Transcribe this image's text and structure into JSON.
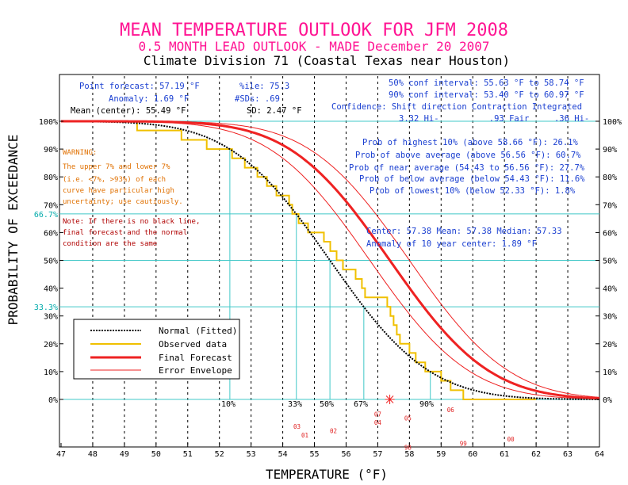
{
  "header": {
    "title": "MEAN TEMPERATURE OUTLOOK FOR JFM 2008",
    "subtitle": "0.5 MONTH LEAD OUTLOOK - MADE December 20 2007",
    "division": "Climate Division 71 (Coastal Texas near Houston)"
  },
  "stats_left": {
    "point_forecast": "Point forecast: 57.19 °F",
    "anomaly": "Anomaly:  1.69 °F",
    "mean_center": "Mean (center): 55.49 °F",
    "pctile": "%ile:  75.3",
    "nsds": "#SDs:  .69",
    "sd": "SD:  2.47 °F"
  },
  "stats_right": {
    "conf50": "50% conf interval: 55.63 °F to 58.74 °F",
    "conf90": "90% conf interval: 53.40 °F to 60.97 °F",
    "confidence_header": "Confidence: Shift direction  Contraction  Integrated",
    "confidence_values": "3.32 Hi-          .93 Fair     .36 Hi-"
  },
  "probabilities": {
    "highest10": "Prob of highest 10% (above 58.66 °F): 26.1%",
    "above": "Prob of above average (above 56.56 °F): 60.7%",
    "near": "Prob of near average (54.43 to 56.56 °F): 27.7%",
    "below": "Prob of below average (below 54.43 °F): 11.6%",
    "lowest10": "Prob of lowest 10% (below 52.33 °F): 1.8%"
  },
  "center_stats": {
    "line1": "Center: 57.38 Mean: 57.38 Median: 57.33",
    "line2": "Anomaly of 10 year center:  1.89 °F"
  },
  "warning": {
    "lines": [
      "WARNING:",
      "The upper 7% and lower 7%",
      "(i.e. <7%, >93%) of each",
      "curve have particular high",
      "uncertainty; use cautiously."
    ]
  },
  "note": {
    "lines": [
      "Note: If there is no black line,",
      "final forecast and  the normal",
      "condition are the same"
    ]
  },
  "legend": {
    "normal": "Normal (Fitted)",
    "observed": "Observed data",
    "final": "Final Forecast",
    "envelope": "Error Envelope"
  },
  "percentile_labels": [
    "10%",
    "33%",
    "50%",
    "67%",
    "90%"
  ],
  "colors": {
    "title": "#ff1493",
    "grid": "#40c8c8",
    "blue_text": "#1a3fd1",
    "forecast": "#ee2222",
    "observed": "#f0c000",
    "normal": "#000000",
    "warning": "#e07000",
    "note": "#b00000"
  },
  "chart_data": {
    "type": "line",
    "xlabel": "TEMPERATURE (°F)",
    "ylabel": "PROBABILITY OF EXCEEDANCE",
    "xlim": [
      47,
      64
    ],
    "ylim": [
      0,
      100
    ],
    "x_ticks": [
      47,
      48,
      49,
      50,
      51,
      52,
      53,
      54,
      55,
      56,
      57,
      58,
      59,
      60,
      61,
      62,
      63,
      64
    ],
    "y_ticks": [
      "0%",
      "10%",
      "20%",
      "30%",
      "40%",
      "50%",
      "60%",
      "70%",
      "80%",
      "90%",
      "100%"
    ],
    "y_tick_values": [
      0,
      10,
      20,
      30,
      40,
      50,
      60,
      70,
      80,
      90,
      100
    ],
    "special_y": [
      {
        "value": 66.7,
        "label": "66.7%"
      },
      {
        "value": 33.3,
        "label": "33.3%"
      }
    ],
    "normal_fit": {
      "mean": 55.49,
      "sd": 2.47
    },
    "final_forecast": {
      "mean": 57.38,
      "sd": 2.47
    },
    "error_envelope": [
      {
        "mean": 56.75,
        "sd": 2.47
      },
      {
        "mean": 58.0,
        "sd": 2.47
      }
    ],
    "percentile_x": [
      52.33,
      54.43,
      55.49,
      56.56,
      58.66
    ],
    "forecast_point_x": 57.38,
    "observed_steps": [
      [
        48.2,
        100
      ],
      [
        49.4,
        100
      ],
      [
        49.4,
        96.7
      ],
      [
        50.8,
        96.7
      ],
      [
        50.8,
        93.3
      ],
      [
        51.6,
        93.3
      ],
      [
        51.6,
        90
      ],
      [
        52.4,
        90
      ],
      [
        52.4,
        86.7
      ],
      [
        52.8,
        86.7
      ],
      [
        52.8,
        83.3
      ],
      [
        53.2,
        83.3
      ],
      [
        53.2,
        80
      ],
      [
        53.5,
        80
      ],
      [
        53.5,
        76.7
      ],
      [
        53.8,
        76.7
      ],
      [
        53.8,
        73.3
      ],
      [
        54.2,
        73.3
      ],
      [
        54.2,
        70
      ],
      [
        54.3,
        70
      ],
      [
        54.3,
        66.7
      ],
      [
        54.5,
        66.7
      ],
      [
        54.5,
        63.3
      ],
      [
        54.8,
        63.3
      ],
      [
        54.8,
        60
      ],
      [
        55.3,
        60
      ],
      [
        55.3,
        56.7
      ],
      [
        55.5,
        56.7
      ],
      [
        55.5,
        53.3
      ],
      [
        55.7,
        53.3
      ],
      [
        55.7,
        50
      ],
      [
        55.9,
        50
      ],
      [
        55.9,
        46.7
      ],
      [
        56.3,
        46.7
      ],
      [
        56.3,
        43.3
      ],
      [
        56.5,
        43.3
      ],
      [
        56.5,
        40
      ],
      [
        56.6,
        40
      ],
      [
        56.6,
        36.7
      ],
      [
        57.3,
        36.7
      ],
      [
        57.3,
        33.3
      ],
      [
        57.4,
        33.3
      ],
      [
        57.4,
        30
      ],
      [
        57.5,
        30
      ],
      [
        57.5,
        26.7
      ],
      [
        57.6,
        26.7
      ],
      [
        57.6,
        23.3
      ],
      [
        57.7,
        23.3
      ],
      [
        57.7,
        20
      ],
      [
        58.0,
        20
      ],
      [
        58.0,
        16.7
      ],
      [
        58.2,
        16.7
      ],
      [
        58.2,
        13.3
      ],
      [
        58.5,
        13.3
      ],
      [
        58.5,
        10
      ],
      [
        59.0,
        10
      ],
      [
        59.0,
        6.7
      ],
      [
        59.3,
        6.7
      ],
      [
        59.3,
        3.3
      ],
      [
        59.7,
        3.3
      ],
      [
        59.7,
        0
      ],
      [
        62.0,
        0
      ]
    ],
    "year_markers": [
      {
        "label": "07",
        "x": 57.0,
        "level": 1
      },
      {
        "label": "06",
        "x": 59.3,
        "level": 0
      },
      {
        "label": "05",
        "x": 57.95,
        "level": 2
      },
      {
        "label": "04",
        "x": 57.0,
        "level": 3
      },
      {
        "label": "03",
        "x": 54.45,
        "level": 4
      },
      {
        "label": "02",
        "x": 55.6,
        "level": 5
      },
      {
        "label": "01",
        "x": 54.7,
        "level": 6
      },
      {
        "label": "00",
        "x": 61.2,
        "level": 7
      },
      {
        "label": "99",
        "x": 59.7,
        "level": 8
      },
      {
        "label": "98",
        "x": 57.95,
        "level": 9
      }
    ]
  }
}
